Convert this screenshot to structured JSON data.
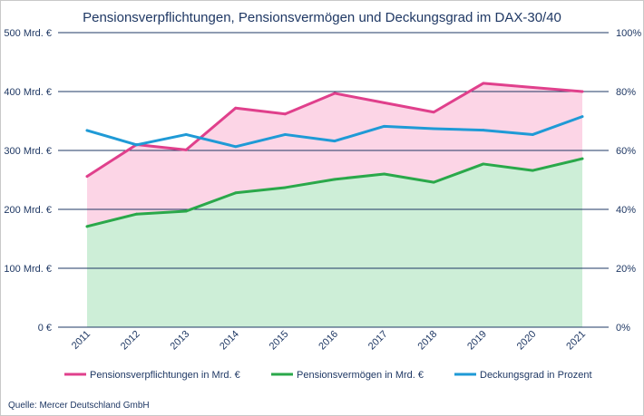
{
  "chart_data": {
    "type": "line",
    "title": "Pensionsverpflichtungen,  Pensionsvermögen  und  Deckungsgrad  im  DAX-30/40",
    "categories": [
      "2011",
      "2012",
      "2013",
      "2014",
      "2015",
      "2016",
      "2017",
      "2018",
      "2019",
      "2020",
      "2021"
    ],
    "series": [
      {
        "name": "Pensionsverpflichtungen  in Mrd. €",
        "axis": "left",
        "color": "#e0408c",
        "fill": "#fcd5e6",
        "values": [
          256,
          310,
          301,
          372,
          362,
          397,
          381,
          365,
          414,
          407,
          400
        ]
      },
      {
        "name": "Pensionsvermögen  in Mrd. €",
        "axis": "left",
        "color": "#2aa84a",
        "fill": "#cdeed7",
        "values": [
          171,
          192,
          197,
          228,
          237,
          251,
          260,
          246,
          277,
          266,
          286
        ]
      },
      {
        "name": "Deckungsgrad in Prozent",
        "axis": "right",
        "color": "#1f9ad6",
        "values": [
          66.8,
          61.9,
          65.4,
          61.3,
          65.4,
          63.2,
          68.2,
          67.4,
          66.9,
          65.4,
          71.5
        ]
      }
    ],
    "y_left": {
      "ylim": [
        0,
        500
      ],
      "ticks": [
        0,
        100,
        200,
        300,
        400,
        500
      ],
      "tick_labels": [
        "0 €",
        "100 Mrd. €",
        "200 Mrd. €",
        "300 Mrd. €",
        "400 Mrd. €",
        "500 Mrd. €"
      ]
    },
    "y_right": {
      "ylim": [
        0,
        100
      ],
      "ticks": [
        0,
        20,
        40,
        60,
        80,
        100
      ],
      "tick_labels": [
        "0%",
        "20%",
        "40%",
        "60%",
        "80%",
        "100%"
      ]
    },
    "grid": true,
    "legend_position": "bottom",
    "gridline_color": "#1f3864",
    "text_color": "#1f3864"
  },
  "source_note": "Quelle:  Mercer Deutschland GmbH"
}
